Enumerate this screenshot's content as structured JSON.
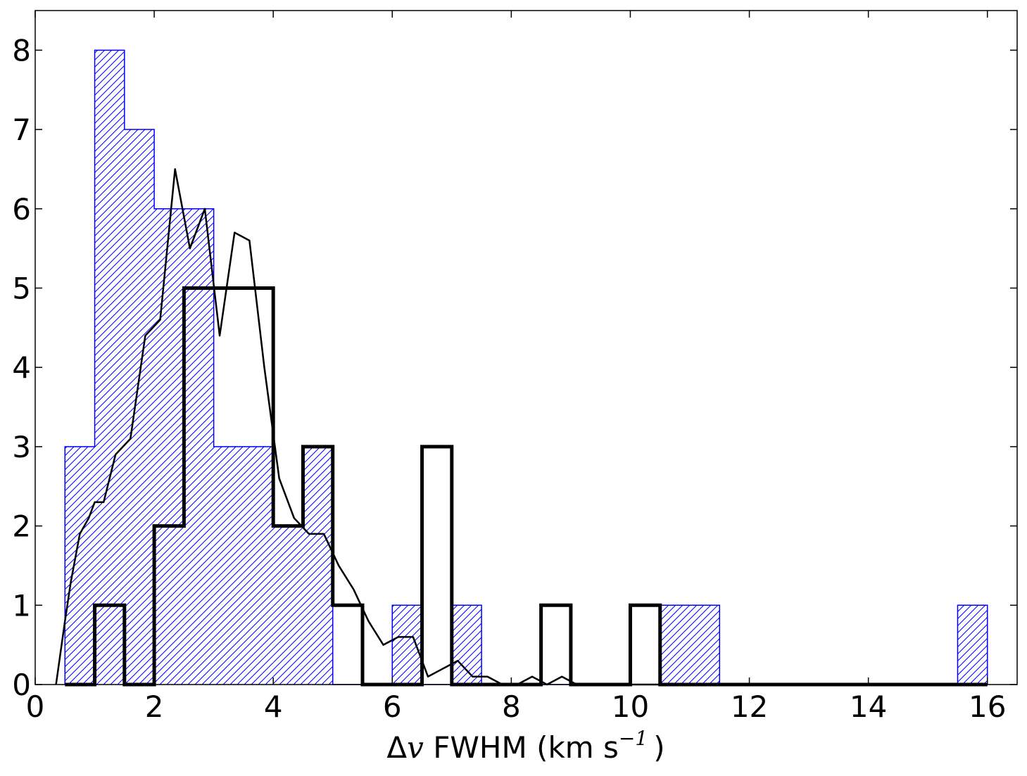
{
  "chart_data": {
    "type": "histogram",
    "title": "",
    "xlabel": {
      "symbol": "Δ",
      "var": "v",
      "text": " FWHM (km s",
      "exp": "−1",
      "close": ")"
    },
    "ylabel": "",
    "xlim": [
      0,
      16.5
    ],
    "ylim": [
      0,
      8.5
    ],
    "xticks": [
      "0",
      "2",
      "4",
      "6",
      "8",
      "10",
      "12",
      "14",
      "16"
    ],
    "yticks": [
      "0",
      "1",
      "2",
      "3",
      "4",
      "5",
      "6",
      "7",
      "8"
    ],
    "grid": false,
    "bin_edges": [
      0.5,
      1.0,
      1.5,
      2.0,
      2.5,
      3.0,
      3.5,
      4.0,
      4.5,
      5.0,
      5.5,
      6.0,
      6.5,
      7.0,
      7.5,
      8.0,
      8.5,
      9.0,
      9.5,
      10.0,
      10.5,
      11.0,
      11.5,
      12.0,
      12.5,
      13.0,
      13.5,
      14.0,
      14.5,
      15.0,
      15.5,
      16.0
    ],
    "series": [
      {
        "style": "hatched-blue-step",
        "color": "#0000ff",
        "counts": [
          3,
          8,
          7,
          6,
          6,
          3,
          3,
          2,
          3,
          0,
          0,
          1,
          0,
          1,
          0,
          0,
          0,
          0,
          0,
          0,
          1,
          1,
          0,
          0,
          0,
          0,
          0,
          0,
          0,
          0,
          1
        ]
      },
      {
        "style": "thick-black-step",
        "color": "#000000",
        "counts": [
          0,
          1,
          0,
          2,
          5,
          5,
          5,
          2,
          3,
          1,
          0,
          0,
          3,
          0,
          0,
          0,
          1,
          0,
          0,
          1,
          0,
          0,
          0,
          0,
          0,
          0,
          0,
          0,
          0,
          0,
          0
        ]
      },
      {
        "style": "thin-black-line",
        "color": "#000000",
        "x": [
          0.35,
          0.5,
          0.6,
          0.75,
          0.9,
          1.0,
          1.15,
          1.35,
          1.6,
          1.85,
          2.1,
          2.35,
          2.6,
          2.85,
          3.1,
          3.35,
          3.6,
          3.85,
          4.1,
          4.35,
          4.6,
          4.85,
          5.1,
          5.35,
          5.6,
          5.85,
          6.1,
          6.35,
          6.6,
          6.85,
          7.1,
          7.35,
          7.6,
          7.85,
          8.1,
          8.35,
          8.6,
          8.85,
          9.1,
          9.35,
          16.0
        ],
        "y": [
          0.0,
          0.8,
          1.3,
          1.9,
          2.1,
          2.3,
          2.3,
          2.9,
          3.1,
          4.4,
          4.6,
          6.5,
          5.5,
          6.0,
          4.4,
          5.7,
          5.6,
          4.0,
          2.6,
          2.1,
          1.9,
          1.9,
          1.5,
          1.2,
          0.8,
          0.5,
          0.6,
          0.6,
          0.1,
          0.2,
          0.3,
          0.1,
          0.1,
          0.0,
          0.0,
          0.1,
          0.0,
          0.1,
          0.0,
          0.0,
          0.0
        ]
      }
    ]
  }
}
